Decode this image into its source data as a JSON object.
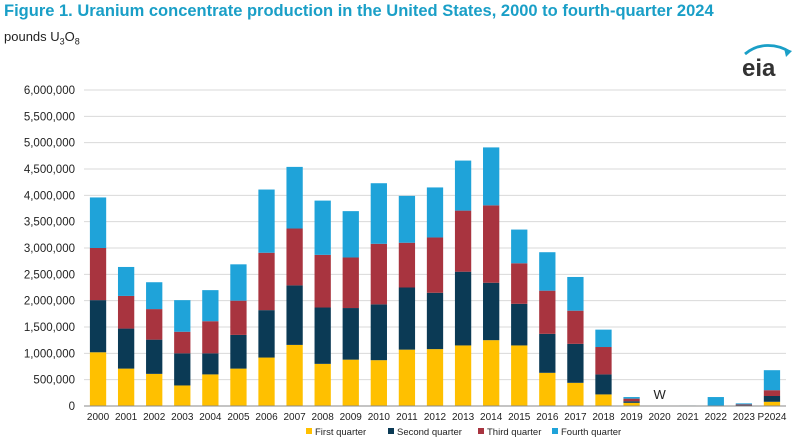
{
  "title": "Figure 1. Uranium concentrate production in the United States, 2000 to fourth-quarter 2024",
  "units": {
    "prefix": "pounds U",
    "sub1": "3",
    "mid": "O",
    "sub2": "8"
  },
  "logo": {
    "text": "eia"
  },
  "chart_data": {
    "type": "bar",
    "stacked": true,
    "categories": [
      "2000",
      "2001",
      "2002",
      "2003",
      "2004",
      "2005",
      "2006",
      "2007",
      "2008",
      "2009",
      "2010",
      "2011",
      "2012",
      "2013",
      "2014",
      "2015",
      "2016",
      "2017",
      "2018",
      "2019",
      "2020",
      "2021",
      "2022",
      "2023",
      "P2024"
    ],
    "series": [
      {
        "name": "First quarter",
        "color": "#ffc000",
        "values": [
          1020000,
          710000,
          610000,
          390000,
          600000,
          710000,
          920000,
          1160000,
          800000,
          880000,
          870000,
          1070000,
          1080000,
          1150000,
          1250000,
          1150000,
          630000,
          440000,
          220000,
          60000,
          0,
          0,
          0,
          10000,
          80000
        ]
      },
      {
        "name": "Second quarter",
        "color": "#0b3a55",
        "values": [
          990000,
          760000,
          650000,
          610000,
          400000,
          640000,
          900000,
          1130000,
          1070000,
          980000,
          1060000,
          1180000,
          1070000,
          1400000,
          1090000,
          790000,
          740000,
          740000,
          380000,
          30000,
          0,
          0,
          0,
          10000,
          110000
        ]
      },
      {
        "name": "Third quarter",
        "color": "#a8343f",
        "values": [
          990000,
          620000,
          580000,
          410000,
          610000,
          650000,
          1090000,
          1080000,
          1000000,
          960000,
          1150000,
          850000,
          1050000,
          1160000,
          1470000,
          770000,
          820000,
          630000,
          520000,
          50000,
          0,
          0,
          0,
          10000,
          110000
        ]
      },
      {
        "name": "Fourth quarter",
        "color": "#1fa3d9",
        "values": [
          960000,
          550000,
          510000,
          600000,
          590000,
          690000,
          1200000,
          1170000,
          1030000,
          880000,
          1150000,
          890000,
          950000,
          950000,
          1100000,
          640000,
          730000,
          640000,
          330000,
          30000,
          0,
          10000,
          170000,
          20000,
          380000
        ]
      }
    ],
    "annotations": [
      {
        "category": "2020",
        "text": "W"
      }
    ],
    "ylim": [
      0,
      6000000
    ],
    "yticks": [
      "0",
      "500,000",
      "1,000,000",
      "1,500,000",
      "2,000,000",
      "2,500,000",
      "3,000,000",
      "3,500,000",
      "4,000,000",
      "4,500,000",
      "5,000,000",
      "5,500,000",
      "6,000,000"
    ],
    "grid": true,
    "legend_position": "bottom"
  },
  "colors": {
    "title": "#1a9fc7",
    "grid": "#d9d9d9",
    "axis": "#888888"
  }
}
